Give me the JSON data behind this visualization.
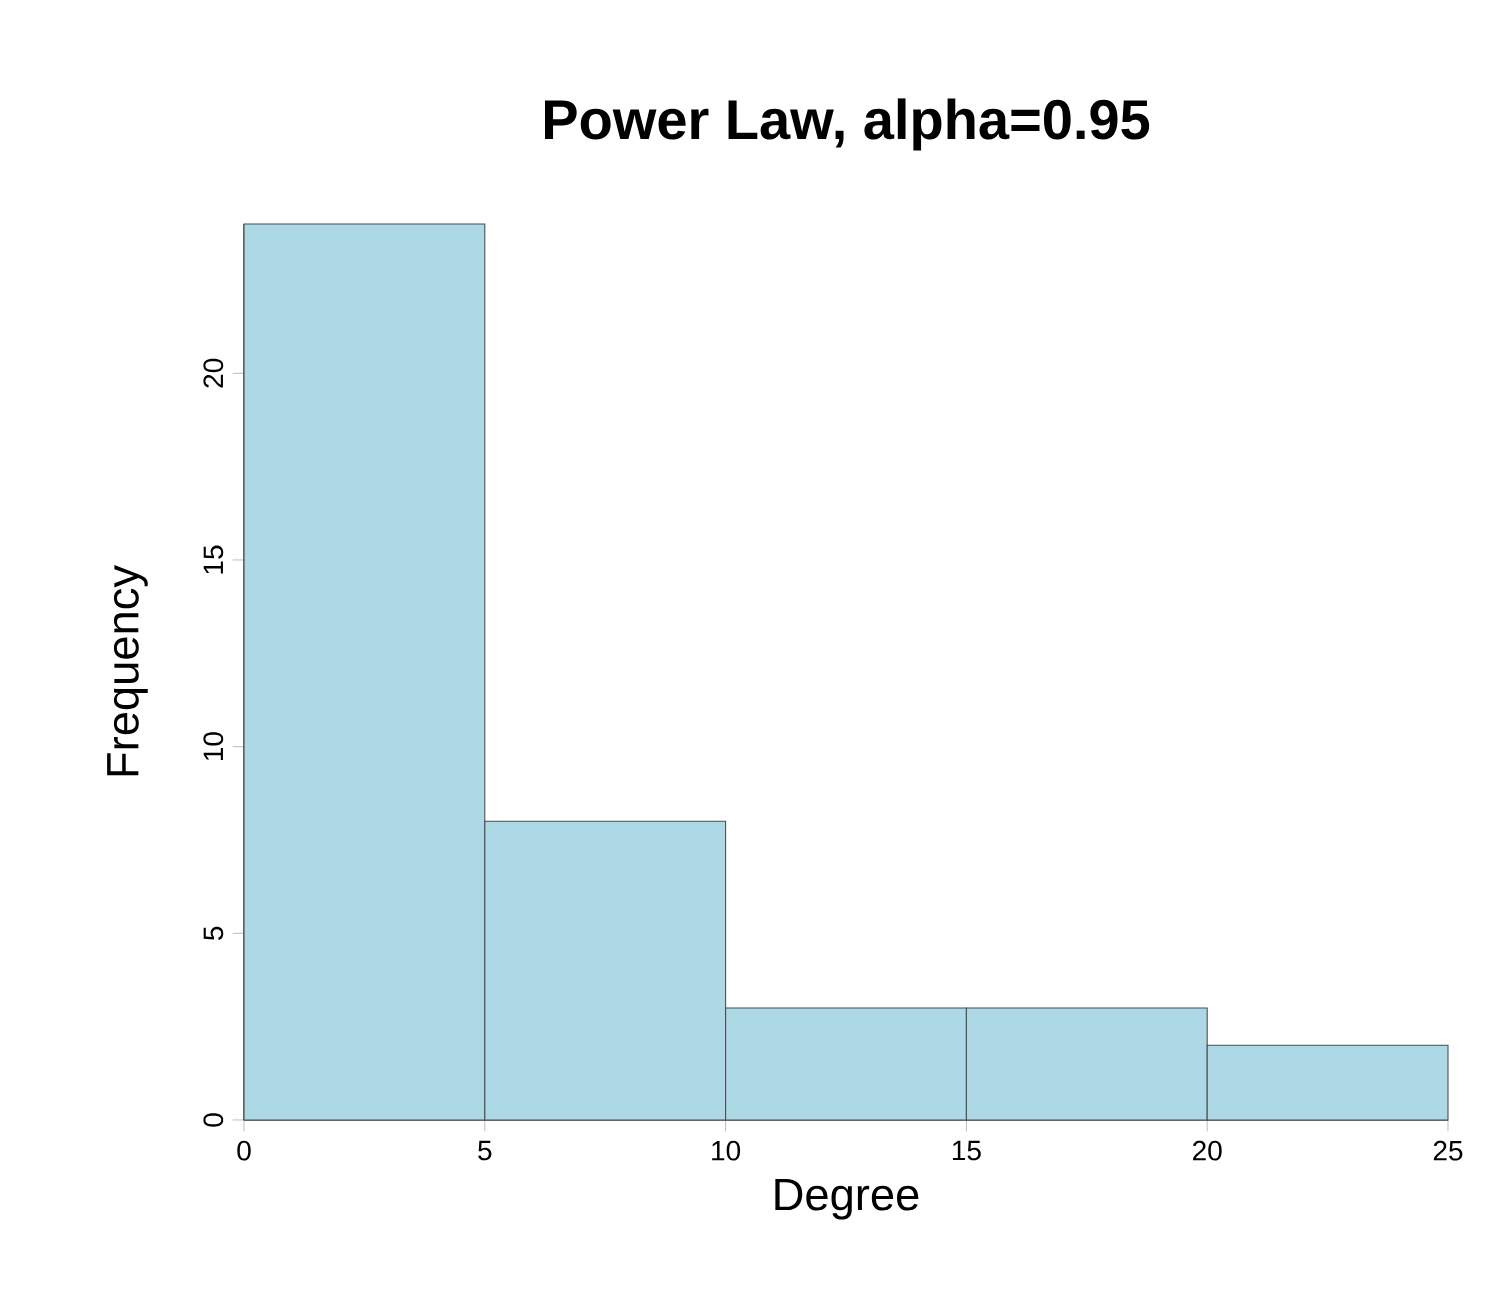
{
  "chart_data": {
    "type": "histogram",
    "title": "Power Law, alpha=0.95",
    "xlabel": "Degree",
    "ylabel": "Frequency",
    "bins": [
      0,
      5,
      10,
      15,
      20,
      25
    ],
    "values": [
      24,
      8,
      3,
      3,
      2
    ],
    "color": "#add8e6",
    "xlim": [
      0,
      25
    ],
    "ylim": [
      0,
      24
    ],
    "xticks": [
      0,
      5,
      10,
      15,
      20,
      25
    ],
    "yticks": [
      0,
      5,
      10,
      15,
      20
    ],
    "grid": false
  }
}
